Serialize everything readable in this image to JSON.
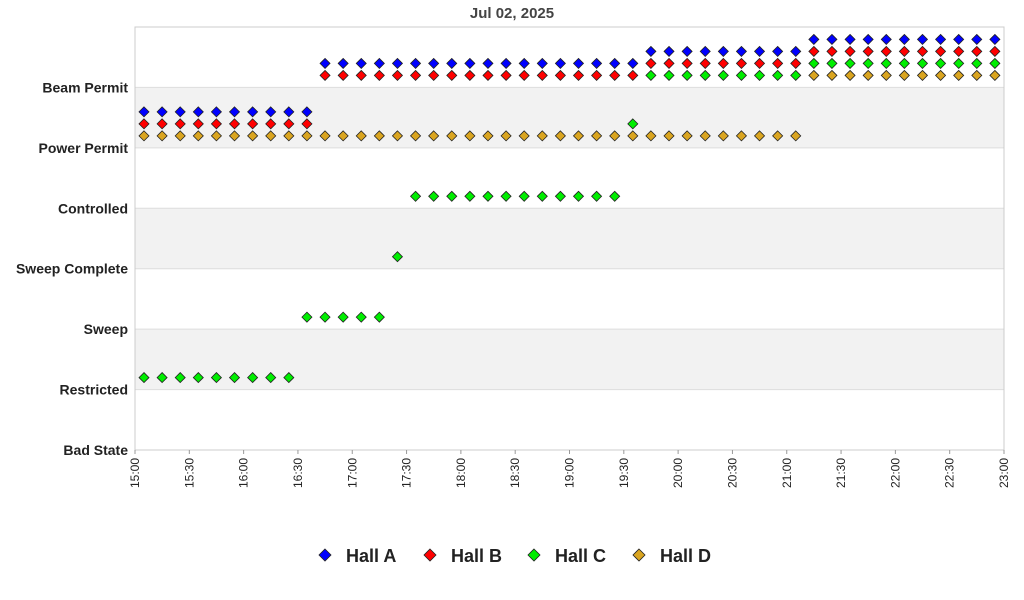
{
  "chart_data": {
    "type": "scatter",
    "title": "Jul 02, 2025",
    "xlabel": "",
    "ylabel": "",
    "x_range": [
      "15:00",
      "23:00"
    ],
    "x_ticks": [
      "15:00",
      "15:30",
      "16:00",
      "16:30",
      "17:00",
      "17:30",
      "18:00",
      "18:30",
      "19:00",
      "19:30",
      "20:00",
      "20:30",
      "21:00",
      "21:30",
      "22:00",
      "22:30",
      "23:00"
    ],
    "y_categories": [
      "Bad State",
      "Restricted",
      "Sweep",
      "Sweep Complete",
      "Controlled",
      "Power Permit",
      "Beam Permit"
    ],
    "grid": "alternating horizontal bands",
    "legend_position": "bottom",
    "series": [
      {
        "name": "Hall A",
        "color": "#0000ff",
        "points": [
          {
            "x": "15:00",
            "y": "Power Permit"
          },
          {
            "x": "15:10",
            "y": "Power Permit"
          },
          {
            "x": "15:20",
            "y": "Power Permit"
          },
          {
            "x": "15:30",
            "y": "Power Permit"
          },
          {
            "x": "15:40",
            "y": "Power Permit"
          },
          {
            "x": "15:50",
            "y": "Power Permit"
          },
          {
            "x": "16:00",
            "y": "Power Permit"
          },
          {
            "x": "16:10",
            "y": "Power Permit"
          },
          {
            "x": "16:20",
            "y": "Power Permit"
          },
          {
            "x": "16:30",
            "y": "Power Permit"
          },
          {
            "x": "16:40",
            "y": "Beam Permit"
          },
          {
            "x": "16:50",
            "y": "Beam Permit"
          },
          {
            "x": "17:00",
            "y": "Beam Permit"
          },
          {
            "x": "17:10",
            "y": "Beam Permit"
          },
          {
            "x": "17:20",
            "y": "Beam Permit"
          },
          {
            "x": "17:30",
            "y": "Beam Permit"
          },
          {
            "x": "17:40",
            "y": "Beam Permit"
          },
          {
            "x": "17:50",
            "y": "Beam Permit"
          },
          {
            "x": "18:00",
            "y": "Beam Permit"
          },
          {
            "x": "18:10",
            "y": "Beam Permit"
          },
          {
            "x": "18:20",
            "y": "Beam Permit"
          },
          {
            "x": "18:30",
            "y": "Beam Permit"
          },
          {
            "x": "18:40",
            "y": "Beam Permit"
          },
          {
            "x": "18:50",
            "y": "Beam Permit"
          },
          {
            "x": "19:00",
            "y": "Beam Permit"
          },
          {
            "x": "19:10",
            "y": "Beam Permit"
          },
          {
            "x": "19:20",
            "y": "Beam Permit"
          },
          {
            "x": "19:30",
            "y": "Beam Permit"
          },
          {
            "x": "19:40",
            "y": "Beam Permit"
          },
          {
            "x": "19:50",
            "y": "Beam Permit"
          },
          {
            "x": "20:00",
            "y": "Beam Permit"
          },
          {
            "x": "20:10",
            "y": "Beam Permit"
          },
          {
            "x": "20:20",
            "y": "Beam Permit"
          },
          {
            "x": "20:30",
            "y": "Beam Permit"
          },
          {
            "x": "20:40",
            "y": "Beam Permit"
          },
          {
            "x": "20:50",
            "y": "Beam Permit"
          },
          {
            "x": "21:00",
            "y": "Beam Permit"
          },
          {
            "x": "21:10",
            "y": "Beam Permit"
          },
          {
            "x": "21:20",
            "y": "Beam Permit"
          },
          {
            "x": "21:30",
            "y": "Beam Permit"
          },
          {
            "x": "21:40",
            "y": "Beam Permit"
          },
          {
            "x": "21:50",
            "y": "Beam Permit"
          },
          {
            "x": "22:00",
            "y": "Beam Permit"
          },
          {
            "x": "22:10",
            "y": "Beam Permit"
          },
          {
            "x": "22:20",
            "y": "Beam Permit"
          },
          {
            "x": "22:30",
            "y": "Beam Permit"
          },
          {
            "x": "22:40",
            "y": "Beam Permit"
          },
          {
            "x": "22:50",
            "y": "Beam Permit"
          }
        ]
      },
      {
        "name": "Hall B",
        "color": "#ff0000",
        "points": [
          {
            "x": "15:00",
            "y": "Power Permit"
          },
          {
            "x": "15:10",
            "y": "Power Permit"
          },
          {
            "x": "15:20",
            "y": "Power Permit"
          },
          {
            "x": "15:30",
            "y": "Power Permit"
          },
          {
            "x": "15:40",
            "y": "Power Permit"
          },
          {
            "x": "15:50",
            "y": "Power Permit"
          },
          {
            "x": "16:00",
            "y": "Power Permit"
          },
          {
            "x": "16:10",
            "y": "Power Permit"
          },
          {
            "x": "16:20",
            "y": "Power Permit"
          },
          {
            "x": "16:30",
            "y": "Power Permit"
          },
          {
            "x": "16:40",
            "y": "Beam Permit"
          },
          {
            "x": "16:50",
            "y": "Beam Permit"
          },
          {
            "x": "17:00",
            "y": "Beam Permit"
          },
          {
            "x": "17:10",
            "y": "Beam Permit"
          },
          {
            "x": "17:20",
            "y": "Beam Permit"
          },
          {
            "x": "17:30",
            "y": "Beam Permit"
          },
          {
            "x": "17:40",
            "y": "Beam Permit"
          },
          {
            "x": "17:50",
            "y": "Beam Permit"
          },
          {
            "x": "18:00",
            "y": "Beam Permit"
          },
          {
            "x": "18:10",
            "y": "Beam Permit"
          },
          {
            "x": "18:20",
            "y": "Beam Permit"
          },
          {
            "x": "18:30",
            "y": "Beam Permit"
          },
          {
            "x": "18:40",
            "y": "Beam Permit"
          },
          {
            "x": "18:50",
            "y": "Beam Permit"
          },
          {
            "x": "19:00",
            "y": "Beam Permit"
          },
          {
            "x": "19:10",
            "y": "Beam Permit"
          },
          {
            "x": "19:20",
            "y": "Beam Permit"
          },
          {
            "x": "19:30",
            "y": "Beam Permit"
          },
          {
            "x": "19:40",
            "y": "Beam Permit"
          },
          {
            "x": "19:50",
            "y": "Beam Permit"
          },
          {
            "x": "20:00",
            "y": "Beam Permit"
          },
          {
            "x": "20:10",
            "y": "Beam Permit"
          },
          {
            "x": "20:20",
            "y": "Beam Permit"
          },
          {
            "x": "20:30",
            "y": "Beam Permit"
          },
          {
            "x": "20:40",
            "y": "Beam Permit"
          },
          {
            "x": "20:50",
            "y": "Beam Permit"
          },
          {
            "x": "21:00",
            "y": "Beam Permit"
          },
          {
            "x": "21:10",
            "y": "Beam Permit"
          },
          {
            "x": "21:20",
            "y": "Beam Permit"
          },
          {
            "x": "21:30",
            "y": "Beam Permit"
          },
          {
            "x": "21:40",
            "y": "Beam Permit"
          },
          {
            "x": "21:50",
            "y": "Beam Permit"
          },
          {
            "x": "22:00",
            "y": "Beam Permit"
          },
          {
            "x": "22:10",
            "y": "Beam Permit"
          },
          {
            "x": "22:20",
            "y": "Beam Permit"
          },
          {
            "x": "22:30",
            "y": "Beam Permit"
          },
          {
            "x": "22:40",
            "y": "Beam Permit"
          },
          {
            "x": "22:50",
            "y": "Beam Permit"
          }
        ]
      },
      {
        "name": "Hall C",
        "color": "#00ee00",
        "points": [
          {
            "x": "15:00",
            "y": "Restricted"
          },
          {
            "x": "15:10",
            "y": "Restricted"
          },
          {
            "x": "15:20",
            "y": "Restricted"
          },
          {
            "x": "15:30",
            "y": "Restricted"
          },
          {
            "x": "15:40",
            "y": "Restricted"
          },
          {
            "x": "15:50",
            "y": "Restricted"
          },
          {
            "x": "16:00",
            "y": "Restricted"
          },
          {
            "x": "16:10",
            "y": "Restricted"
          },
          {
            "x": "16:20",
            "y": "Restricted"
          },
          {
            "x": "16:30",
            "y": "Sweep"
          },
          {
            "x": "16:40",
            "y": "Sweep"
          },
          {
            "x": "16:50",
            "y": "Sweep"
          },
          {
            "x": "17:00",
            "y": "Sweep"
          },
          {
            "x": "17:10",
            "y": "Sweep"
          },
          {
            "x": "17:20",
            "y": "Sweep Complete"
          },
          {
            "x": "17:30",
            "y": "Controlled"
          },
          {
            "x": "17:40",
            "y": "Controlled"
          },
          {
            "x": "17:50",
            "y": "Controlled"
          },
          {
            "x": "18:00",
            "y": "Controlled"
          },
          {
            "x": "18:10",
            "y": "Controlled"
          },
          {
            "x": "18:20",
            "y": "Controlled"
          },
          {
            "x": "18:30",
            "y": "Controlled"
          },
          {
            "x": "18:40",
            "y": "Controlled"
          },
          {
            "x": "18:50",
            "y": "Controlled"
          },
          {
            "x": "19:00",
            "y": "Controlled"
          },
          {
            "x": "19:10",
            "y": "Controlled"
          },
          {
            "x": "19:20",
            "y": "Controlled"
          },
          {
            "x": "19:30",
            "y": "Power Permit"
          },
          {
            "x": "19:40",
            "y": "Beam Permit"
          },
          {
            "x": "19:50",
            "y": "Beam Permit"
          },
          {
            "x": "20:00",
            "y": "Beam Permit"
          },
          {
            "x": "20:10",
            "y": "Beam Permit"
          },
          {
            "x": "20:20",
            "y": "Beam Permit"
          },
          {
            "x": "20:30",
            "y": "Beam Permit"
          },
          {
            "x": "20:40",
            "y": "Beam Permit"
          },
          {
            "x": "20:50",
            "y": "Beam Permit"
          },
          {
            "x": "21:00",
            "y": "Beam Permit"
          },
          {
            "x": "21:10",
            "y": "Beam Permit"
          },
          {
            "x": "21:20",
            "y": "Beam Permit"
          },
          {
            "x": "21:30",
            "y": "Beam Permit"
          },
          {
            "x": "21:40",
            "y": "Beam Permit"
          },
          {
            "x": "21:50",
            "y": "Beam Permit"
          },
          {
            "x": "22:00",
            "y": "Beam Permit"
          },
          {
            "x": "22:10",
            "y": "Beam Permit"
          },
          {
            "x": "22:20",
            "y": "Beam Permit"
          },
          {
            "x": "22:30",
            "y": "Beam Permit"
          },
          {
            "x": "22:40",
            "y": "Beam Permit"
          },
          {
            "x": "22:50",
            "y": "Beam Permit"
          }
        ]
      },
      {
        "name": "Hall D",
        "color": "#daa520",
        "points": [
          {
            "x": "15:00",
            "y": "Power Permit"
          },
          {
            "x": "15:10",
            "y": "Power Permit"
          },
          {
            "x": "15:20",
            "y": "Power Permit"
          },
          {
            "x": "15:30",
            "y": "Power Permit"
          },
          {
            "x": "15:40",
            "y": "Power Permit"
          },
          {
            "x": "15:50",
            "y": "Power Permit"
          },
          {
            "x": "16:00",
            "y": "Power Permit"
          },
          {
            "x": "16:10",
            "y": "Power Permit"
          },
          {
            "x": "16:20",
            "y": "Power Permit"
          },
          {
            "x": "16:30",
            "y": "Power Permit"
          },
          {
            "x": "16:40",
            "y": "Power Permit"
          },
          {
            "x": "16:50",
            "y": "Power Permit"
          },
          {
            "x": "17:00",
            "y": "Power Permit"
          },
          {
            "x": "17:10",
            "y": "Power Permit"
          },
          {
            "x": "17:20",
            "y": "Power Permit"
          },
          {
            "x": "17:30",
            "y": "Power Permit"
          },
          {
            "x": "17:40",
            "y": "Power Permit"
          },
          {
            "x": "17:50",
            "y": "Power Permit"
          },
          {
            "x": "18:00",
            "y": "Power Permit"
          },
          {
            "x": "18:10",
            "y": "Power Permit"
          },
          {
            "x": "18:20",
            "y": "Power Permit"
          },
          {
            "x": "18:30",
            "y": "Power Permit"
          },
          {
            "x": "18:40",
            "y": "Power Permit"
          },
          {
            "x": "18:50",
            "y": "Power Permit"
          },
          {
            "x": "19:00",
            "y": "Power Permit"
          },
          {
            "x": "19:10",
            "y": "Power Permit"
          },
          {
            "x": "19:20",
            "y": "Power Permit"
          },
          {
            "x": "19:30",
            "y": "Power Permit"
          },
          {
            "x": "19:40",
            "y": "Power Permit"
          },
          {
            "x": "19:50",
            "y": "Power Permit"
          },
          {
            "x": "20:00",
            "y": "Power Permit"
          },
          {
            "x": "20:10",
            "y": "Power Permit"
          },
          {
            "x": "20:20",
            "y": "Power Permit"
          },
          {
            "x": "20:30",
            "y": "Power Permit"
          },
          {
            "x": "20:40",
            "y": "Power Permit"
          },
          {
            "x": "20:50",
            "y": "Power Permit"
          },
          {
            "x": "21:00",
            "y": "Power Permit"
          },
          {
            "x": "21:10",
            "y": "Beam Permit"
          },
          {
            "x": "21:20",
            "y": "Beam Permit"
          },
          {
            "x": "21:30",
            "y": "Beam Permit"
          },
          {
            "x": "21:40",
            "y": "Beam Permit"
          },
          {
            "x": "21:50",
            "y": "Beam Permit"
          },
          {
            "x": "22:00",
            "y": "Beam Permit"
          },
          {
            "x": "22:10",
            "y": "Beam Permit"
          },
          {
            "x": "22:20",
            "y": "Beam Permit"
          },
          {
            "x": "22:30",
            "y": "Beam Permit"
          },
          {
            "x": "22:40",
            "y": "Beam Permit"
          },
          {
            "x": "22:50",
            "y": "Beam Permit"
          }
        ]
      }
    ]
  }
}
